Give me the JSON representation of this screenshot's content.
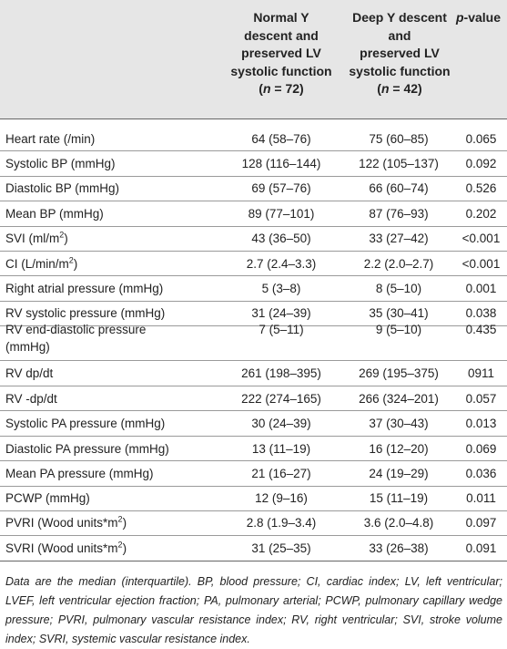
{
  "header": {
    "col1": [
      "Normal Y",
      "descent and",
      "preserved LV",
      "systolic function"
    ],
    "col1_n_label": "n",
    "col1_n_value": " = 72",
    "col2": [
      "Deep Y descent",
      "and",
      "preserved LV",
      "systolic function"
    ],
    "col2_n_label": "n",
    "col2_n_value": " = 42",
    "col3_italic": "p",
    "col3_rest": "-value"
  },
  "rows": [
    {
      "label": "Heart rate (/min)",
      "normal": "64 (58–76)",
      "deep": "75 (60–85)",
      "p": "0.065"
    },
    {
      "label": "Systolic BP (mmHg)",
      "normal": "128 (116–144)",
      "deep": "122 (105–137)",
      "p": "0.092"
    },
    {
      "label": "Diastolic BP (mmHg)",
      "normal": "69 (57–76)",
      "deep": "66 (60–74)",
      "p": "0.526"
    },
    {
      "label": "Mean BP (mmHg)",
      "normal": "89 (77–101)",
      "deep": "87 (76–93)",
      "p": "0.202"
    },
    {
      "label_pre": "SVI (ml/m",
      "label_sup": "2",
      "label_post": ")",
      "normal": "43 (36–50)",
      "deep": "33 (27–42)",
      "p": "<0.001"
    },
    {
      "label_pre": "CI (L/min/m",
      "label_sup": "2",
      "label_post": ")",
      "normal": "2.7 (2.4–3.3)",
      "deep": "2.2 (2.0–2.7)",
      "p": "<0.001"
    },
    {
      "label": "Right atrial pressure (mmHg)",
      "normal": "5 (3–8)",
      "deep": "8 (5–10)",
      "p": "0.001"
    },
    {
      "label": "RV systolic pressure (mmHg)",
      "normal": "31 (24–39)",
      "deep": "35 (30–41)",
      "p": "0.038"
    },
    {
      "label_line1": "RV end-diastolic pressure",
      "label_line2": "(mmHg)",
      "normal": "7 (5–11)",
      "deep": "9 (5–10)",
      "p": "0.435"
    },
    {
      "label": "RV dp/dt",
      "normal": "261 (198–395)",
      "deep": "269 (195–375)",
      "p": "0911"
    },
    {
      "label": "RV -dp/dt",
      "normal": "222 (274–165)",
      "deep": "266 (324–201)",
      "p": "0.057"
    },
    {
      "label": "Systolic PA pressure (mmHg)",
      "normal": "30 (24–39)",
      "deep": "37 (30–43)",
      "p": "0.013"
    },
    {
      "label": "Diastolic PA pressure (mmHg)",
      "normal": "13 (11–19)",
      "deep": "16 (12–20)",
      "p": "0.069"
    },
    {
      "label": "Mean PA pressure (mmHg)",
      "normal": "21 (16–27)",
      "deep": "24 (19–29)",
      "p": "0.036"
    },
    {
      "label": "PCWP (mmHg)",
      "normal": "12 (9–16)",
      "deep": "15 (11–19)",
      "p": "0.011"
    },
    {
      "label_pre": "PVRI (Wood units*m",
      "label_sup": "2",
      "label_post": ")",
      "normal": "2.8 (1.9–3.4)",
      "deep": "3.6 (2.0–4.8)",
      "p": "0.097"
    },
    {
      "label_pre": "SVRI (Wood units*m",
      "label_sup": "2",
      "label_post": ")",
      "normal": "31 (25–35)",
      "deep": "33 (26–38)",
      "p": "0.091"
    }
  ],
  "footnote": "Data are the median (interquartile). BP, blood pressure; CI, cardiac index; LV, left ventricular; LVEF, left ventricular ejection fraction; PA, pulmonary arterial; PCWP, pulmonary capillary wedge pressure; PVRI, pulmonary vascular resistance index; RV, right ventricular; SVI, stroke volume index; SVRI, systemic vascular resistance index."
}
